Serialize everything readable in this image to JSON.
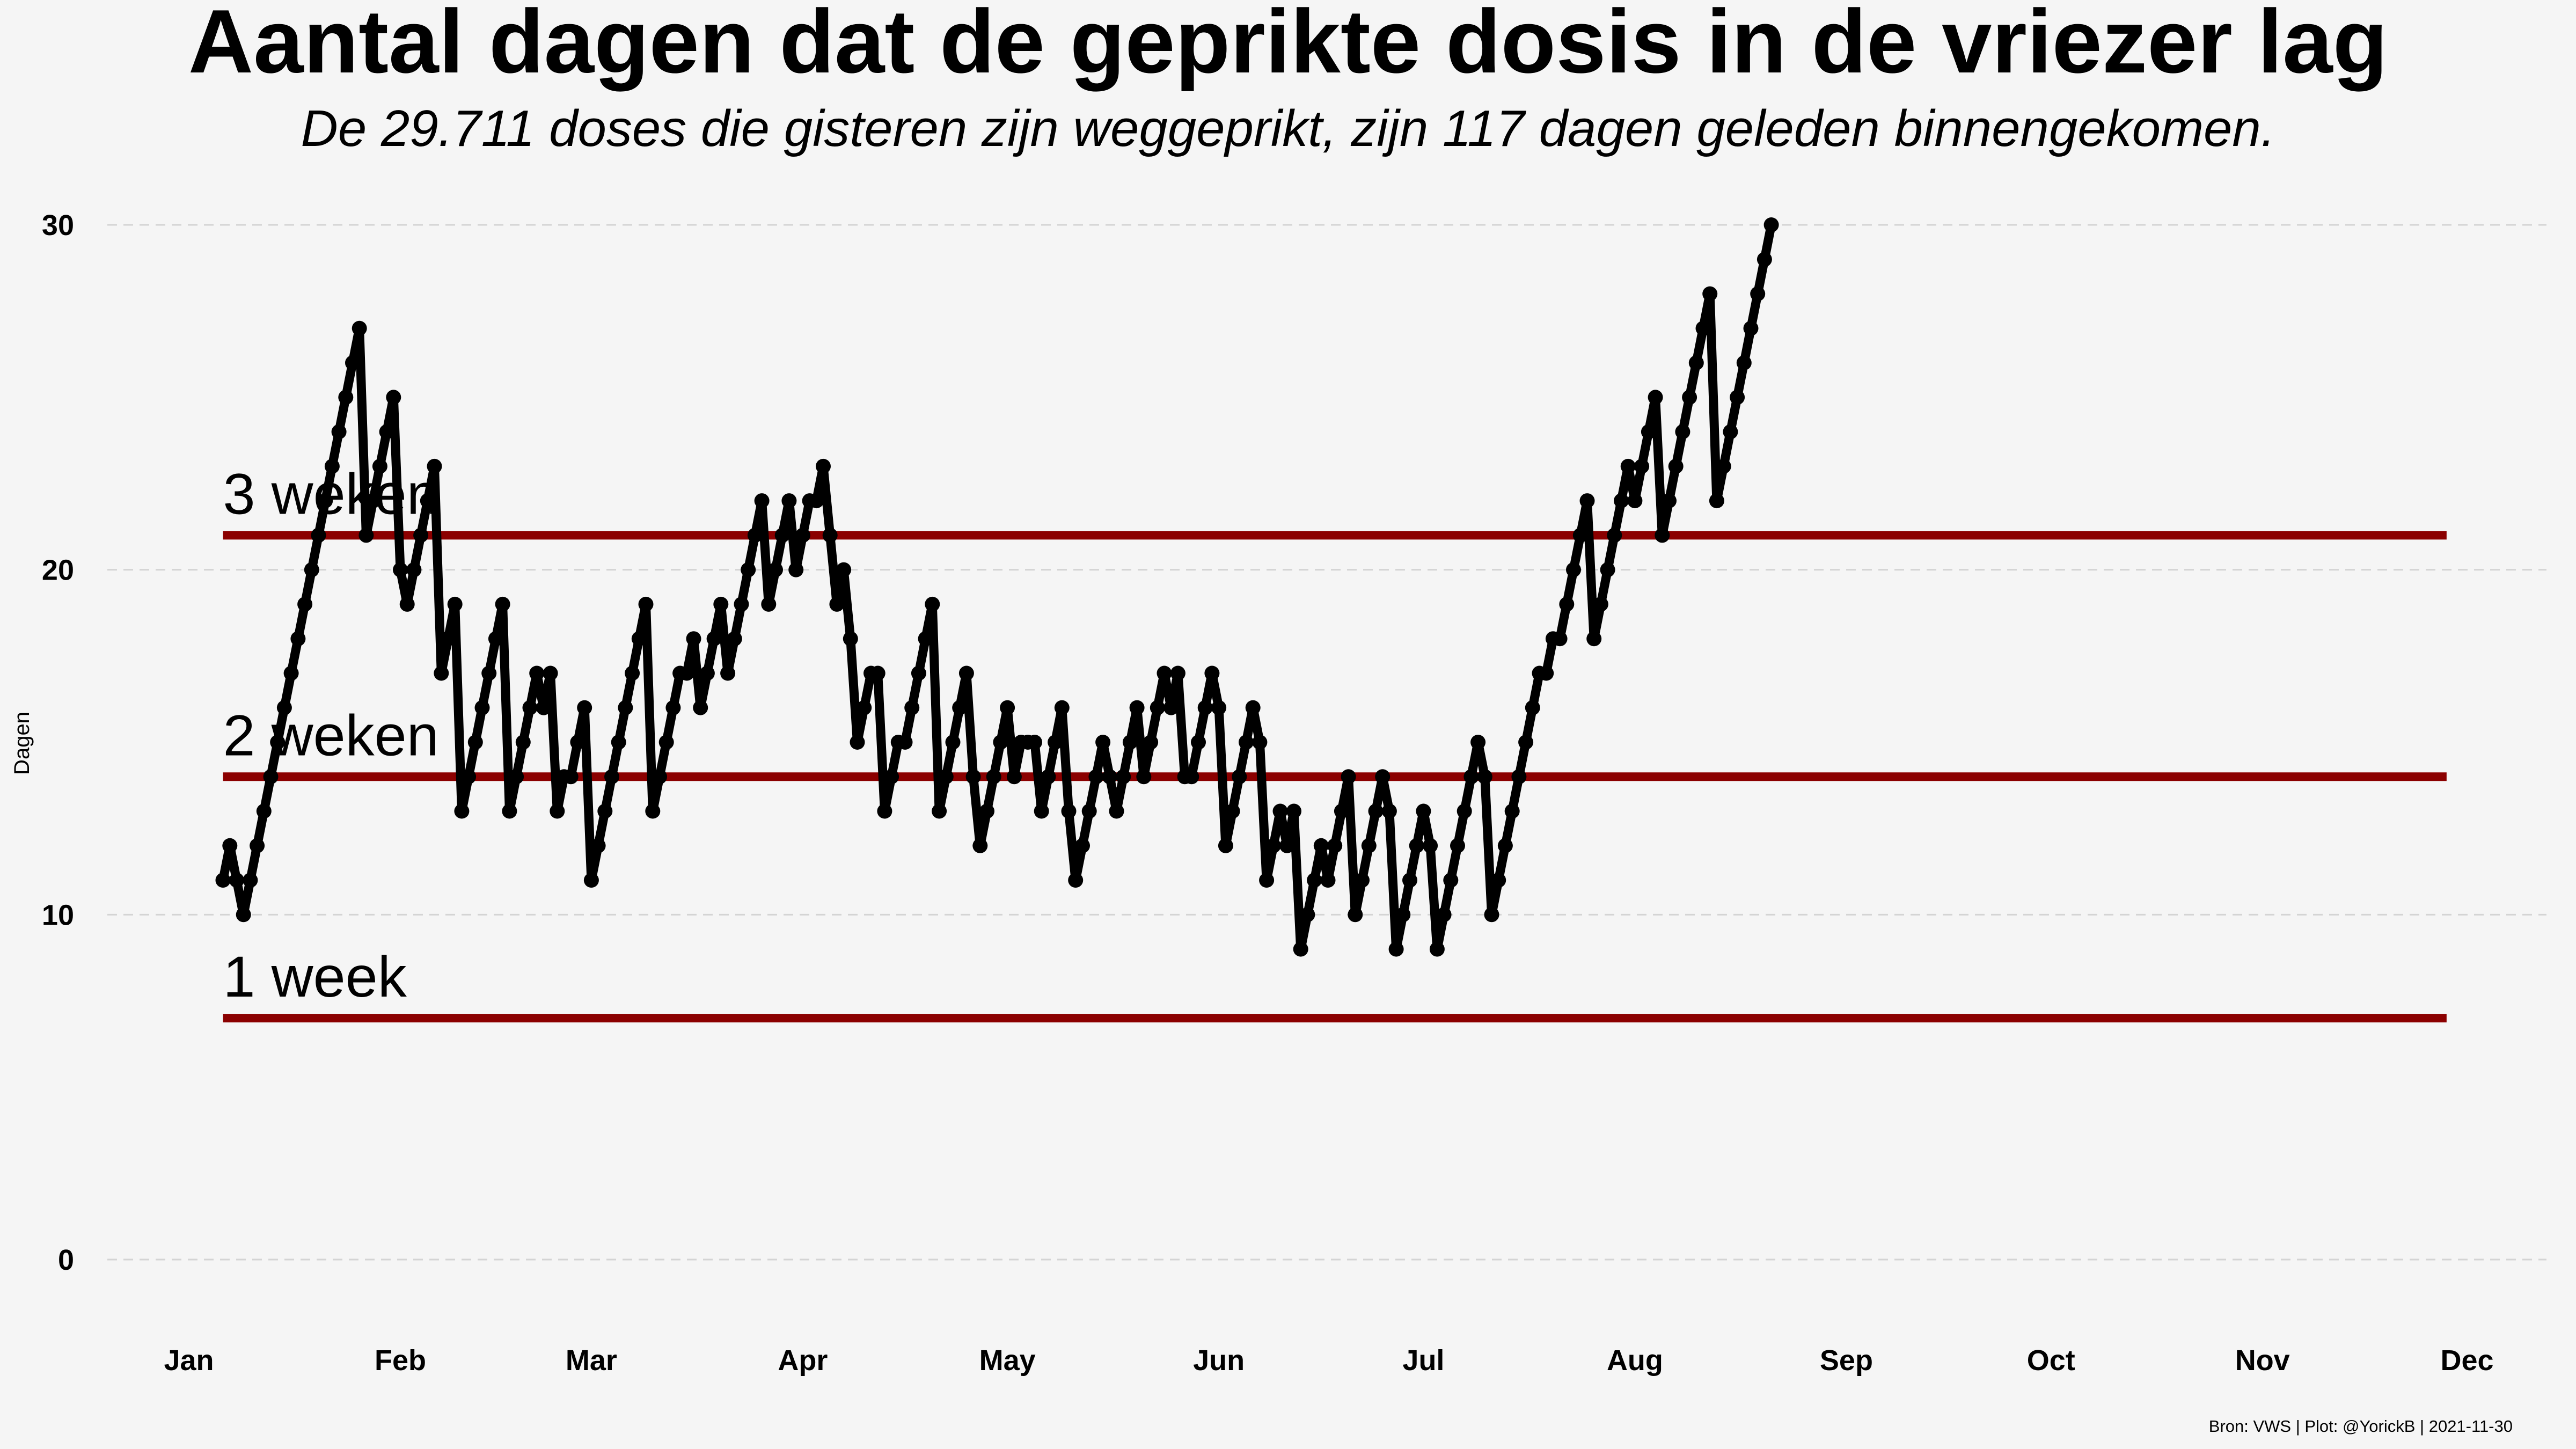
{
  "chart_data": {
    "type": "line",
    "title": "Aantal dagen dat de geprikte dosis in de vriezer lag",
    "subtitle": "De 29.711 doses die gisteren zijn weggeprikt, zijn 117 dagen geleden binnengekomen.",
    "xlabel": "",
    "ylabel": "Dagen",
    "caption": "Bron: VWS | Plot: @YorickB  |  2021-11-30",
    "x_ticks": [
      "Jan",
      "Feb",
      "Mar",
      "Apr",
      "May",
      "Jun",
      "Jul",
      "Aug",
      "Sep",
      "Oct",
      "Nov",
      "Dec"
    ],
    "y_ticks": [
      "0",
      "10",
      "20",
      "30"
    ],
    "ylim": [
      0,
      30
    ],
    "xlim": [
      "2021-01-01",
      "2021-12-01"
    ],
    "grid": "horizontal dashed",
    "line_color": "#000000",
    "reference_color": "#8b0000",
    "reference_lines": [
      {
        "label": "1 week",
        "y": 7,
        "x_start": "2021-01-06",
        "x_end": "2021-11-28"
      },
      {
        "label": "2 weken",
        "y": 14,
        "x_start": "2021-01-06",
        "x_end": "2021-11-28"
      },
      {
        "label": "3 weken",
        "y": 21,
        "x_start": "2021-01-06",
        "x_end": "2021-11-28"
      }
    ],
    "series": [
      {
        "start_date": "2021-01-06",
        "values": [
          11,
          12,
          11,
          10,
          11,
          12,
          13,
          14,
          15,
          16,
          17,
          18,
          19,
          20,
          21,
          22,
          23,
          24,
          25,
          26,
          27,
          21,
          22,
          23,
          24,
          25,
          20,
          19,
          20,
          21,
          22,
          23,
          17,
          18,
          19,
          13,
          14,
          15,
          16,
          17,
          18,
          19,
          13,
          14,
          15,
          16,
          17,
          16,
          17,
          13,
          14,
          14,
          15,
          16,
          11,
          12,
          13,
          14,
          15,
          16,
          17,
          18,
          19,
          13,
          14,
          15,
          16,
          17,
          17,
          18,
          16,
          17,
          18,
          19,
          17,
          18,
          19,
          20,
          21,
          22,
          19,
          20,
          21,
          22,
          20,
          21,
          22,
          22,
          23,
          21,
          19,
          20,
          18,
          15,
          16,
          17,
          17,
          13,
          14,
          15,
          15,
          16,
          17,
          18,
          19,
          13,
          14,
          15,
          16,
          17,
          14,
          12,
          13,
          14,
          15,
          16,
          14,
          15,
          15,
          15,
          13,
          14,
          15,
          16,
          13,
          11,
          12,
          13,
          14,
          15,
          14,
          13,
          14,
          15,
          16,
          14,
          15,
          16,
          17,
          16,
          17,
          14,
          14,
          15,
          16,
          17,
          16,
          12,
          13,
          14,
          15,
          16,
          15,
          11,
          12,
          13,
          12,
          13,
          9,
          10,
          11,
          12,
          11,
          12,
          13,
          14,
          10,
          11,
          12,
          13,
          14,
          13,
          9,
          10,
          11,
          12,
          13,
          12,
          9,
          10,
          11,
          12,
          13,
          14,
          15,
          14,
          10,
          11,
          12,
          13,
          14,
          15,
          16,
          17,
          17,
          18,
          18,
          19,
          20,
          21,
          22,
          18,
          19,
          20,
          21,
          22,
          23,
          22,
          23,
          24,
          25,
          21,
          22,
          23,
          24,
          25,
          26,
          27,
          28,
          22,
          23,
          24,
          25,
          26,
          27,
          28,
          29,
          30
        ]
      }
    ]
  }
}
